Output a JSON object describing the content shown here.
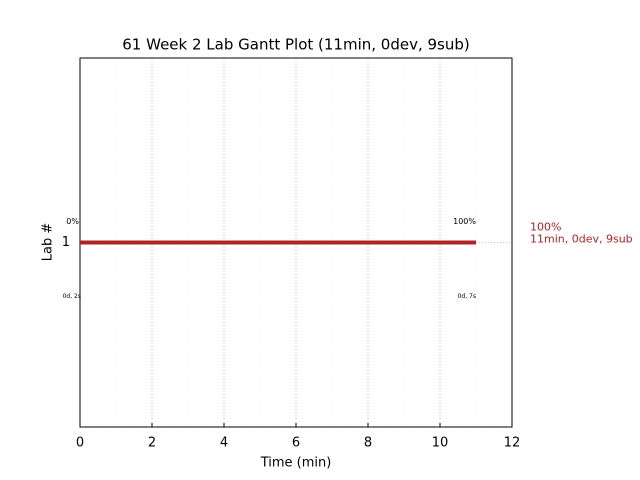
{
  "chart_data": {
    "type": "gantt",
    "title": "61 Week 2 Lab Gantt Plot (11min, 0dev, 9sub)",
    "x_label": "Time (min)",
    "y_label": "Lab #",
    "categories": [
      "1"
    ],
    "start": [
      0
    ],
    "end": [
      11
    ],
    "color": "#b22222",
    "start_labels": [
      "0%"
    ],
    "end_labels": [
      "100%"
    ],
    "start_times": [
      "0d, 2s"
    ],
    "end_times": [
      "0d, 7s"
    ],
    "side_labels": [
      [
        "100%",
        "11min, 0dev, 9sub"
      ]
    ],
    "xlim": [
      0,
      12
    ],
    "xticks": [
      0,
      2,
      4,
      6,
      8,
      10,
      12
    ],
    "grid": true
  }
}
